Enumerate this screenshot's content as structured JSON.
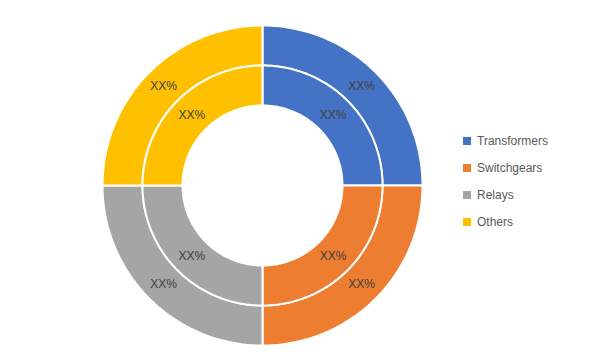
{
  "chart_data": {
    "type": "pie",
    "categories": [
      "Transformers",
      "Switchgears",
      "Relays",
      "Others"
    ],
    "colors": [
      "#4472c4",
      "#ed7d31",
      "#a5a5a5",
      "#ffc000"
    ],
    "series": [
      {
        "values": [
          25,
          25,
          25,
          25
        ],
        "value_labels": [
          "XX%",
          "XX%",
          "XX%",
          "XX%"
        ]
      },
      {
        "values": [
          25,
          25,
          25,
          25
        ],
        "value_labels": [
          "XX%",
          "XX%",
          "XX%",
          "XX%"
        ]
      }
    ],
    "data_labels": true,
    "legend": "right"
  }
}
